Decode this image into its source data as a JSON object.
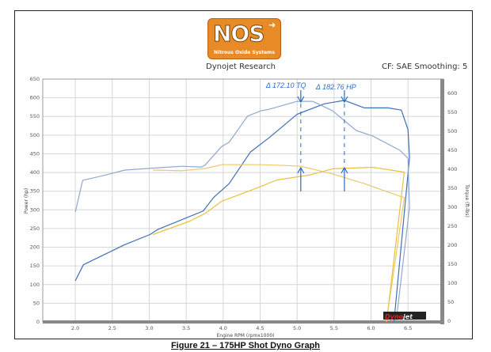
{
  "header": {
    "logo_text": "NOS",
    "logo_subtext": "Nitrous Oxide Systems",
    "left_label": "Dynojet Research",
    "right_label": "CF: SAE Smoothing: 5"
  },
  "caption": "Figure 21 – 175HP Shot Dyno Graph",
  "watermark": "Dynojet",
  "colors": {
    "power_nitrous": "#3f6fb5",
    "torque_nitrous": "#8fa9d0",
    "power_baseline": "#e8c23a",
    "torque_baseline": "#edc867",
    "annotation": "#2a6bc6"
  },
  "chart_data": {
    "type": "line",
    "xlabel": "Engine RPM (rpmx1000)",
    "ylabel": "Power (hp)",
    "y2label": "Torque (ft-lbs)",
    "xlim": [
      1.56,
      6.98
    ],
    "ylim": [
      0,
      650
    ],
    "y2lim": [
      0,
      635
    ],
    "x_ticks": [
      "2.0",
      "2.5",
      "3.0",
      "3.5",
      "4.0",
      "4.5",
      "5.0",
      "5.5",
      "6.0",
      "6.5"
    ],
    "y_ticks": [
      "0",
      "50",
      "100",
      "150",
      "200",
      "250",
      "300",
      "350",
      "400",
      "450",
      "500",
      "550",
      "600",
      "650"
    ],
    "y2_ticks": [
      "0",
      "50",
      "100",
      "150",
      "200",
      "250",
      "300",
      "350",
      "400",
      "450",
      "500",
      "550",
      "600"
    ],
    "grid": true,
    "series": [
      {
        "axis": "left",
        "color": "#3f6fb5",
        "points": [
          [
            2.0,
            110
          ],
          [
            2.11,
            153
          ],
          [
            2.66,
            206
          ],
          [
            3.01,
            234
          ],
          [
            3.12,
            248
          ],
          [
            3.73,
            297
          ],
          [
            3.87,
            333
          ],
          [
            4.08,
            370
          ],
          [
            4.37,
            455
          ],
          [
            4.62,
            493
          ],
          [
            5.0,
            556
          ],
          [
            5.37,
            584
          ],
          [
            5.64,
            593
          ],
          [
            5.91,
            573
          ],
          [
            6.23,
            573
          ],
          [
            6.41,
            567
          ],
          [
            6.5,
            515
          ],
          [
            6.52,
            440
          ],
          [
            6.31,
            0
          ]
        ]
      },
      {
        "axis": "right",
        "color": "#8fa9d0",
        "points": [
          [
            2.0,
            287
          ],
          [
            2.1,
            371
          ],
          [
            2.37,
            383
          ],
          [
            2.67,
            398
          ],
          [
            3.12,
            404
          ],
          [
            3.44,
            408
          ],
          [
            3.71,
            406
          ],
          [
            3.76,
            412
          ],
          [
            3.98,
            460
          ],
          [
            4.08,
            471
          ],
          [
            4.33,
            540
          ],
          [
            4.51,
            554
          ],
          [
            4.62,
            558
          ],
          [
            5.0,
            579
          ],
          [
            5.21,
            579
          ],
          [
            5.48,
            554
          ],
          [
            5.8,
            502
          ],
          [
            6.02,
            488
          ],
          [
            6.39,
            450
          ],
          [
            6.5,
            429
          ],
          [
            6.52,
            300
          ],
          [
            6.34,
            0
          ]
        ]
      },
      {
        "axis": "left",
        "color": "#e8c23a",
        "points": [
          [
            3.05,
            234
          ],
          [
            3.55,
            270
          ],
          [
            3.76,
            291
          ],
          [
            3.98,
            323
          ],
          [
            4.41,
            355
          ],
          [
            4.73,
            380
          ],
          [
            5.16,
            393
          ],
          [
            5.48,
            410
          ],
          [
            6.02,
            414
          ],
          [
            6.45,
            401
          ],
          [
            6.21,
            0
          ]
        ]
      },
      {
        "axis": "right",
        "color": "#edc867",
        "points": [
          [
            3.05,
            398
          ],
          [
            3.44,
            396
          ],
          [
            3.76,
            402
          ],
          [
            3.98,
            412
          ],
          [
            4.51,
            412
          ],
          [
            4.84,
            410
          ],
          [
            5.05,
            408
          ],
          [
            5.48,
            388
          ],
          [
            5.91,
            362
          ],
          [
            6.45,
            325
          ],
          [
            6.21,
            0
          ]
        ]
      }
    ],
    "annotations": [
      {
        "text": "Δ 172.10 TQ",
        "rpm": 5.05
      },
      {
        "text": "Δ 182.76 HP",
        "rpm": 5.64
      }
    ]
  }
}
